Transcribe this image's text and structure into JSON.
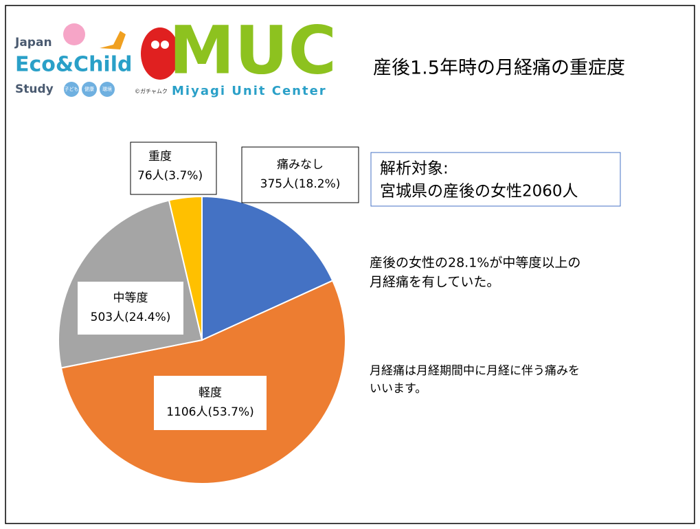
{
  "chart_data": {
    "type": "pie",
    "title": "産後1.5年時の月経痛の重症度",
    "categories": [
      "痛みなし",
      "軽度",
      "中等度",
      "重度"
    ],
    "values": [
      375,
      1106,
      503,
      76
    ],
    "value_labels": [
      "375人(18.2%)",
      "1106人(53.7%)",
      "503人(24.4%)",
      "76人(3.7%)"
    ],
    "colors": [
      "#4472c4",
      "#ed7d31",
      "#a5a5a5",
      "#ffc000"
    ]
  },
  "logo": {
    "line1": "Japan",
    "line2": "Eco&Child",
    "line3": "Study",
    "badges": [
      "子ども",
      "健康",
      "環境"
    ],
    "credit": "©ガチャムク",
    "brand": "MUC",
    "brand_sub": "Miyagi Unit Center"
  },
  "subject_box": {
    "line1": "解析対象:",
    "line2": "宮城県の産後の女性2060人"
  },
  "notes": [
    [
      "産後の女性の28.1%が中等度以上の",
      "月経痛を有していた。"
    ],
    [
      "月経痛は月経期間中に月経に伴う痛みを",
      "いいます。"
    ]
  ]
}
